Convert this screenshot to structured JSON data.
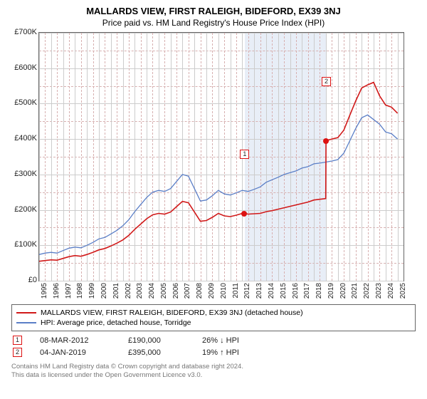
{
  "title": "MALLARDS VIEW, FIRST RALEIGH, BIDEFORD, EX39 3NJ",
  "subtitle": "Price paid vs. HM Land Registry's House Price Index (HPI)",
  "chart": {
    "type": "line",
    "xmin": 1995,
    "xmax": 2025.5,
    "ymin": 0,
    "ymax": 700000,
    "ylabels": [
      "£0",
      "£100K",
      "£200K",
      "£300K",
      "£400K",
      "£500K",
      "£600K",
      "£700K"
    ],
    "xticks": [
      1995,
      1996,
      1997,
      1998,
      1999,
      2000,
      2001,
      2002,
      2003,
      2004,
      2005,
      2006,
      2007,
      2008,
      2009,
      2010,
      2011,
      2012,
      2013,
      2014,
      2015,
      2016,
      2017,
      2018,
      2019,
      2020,
      2021,
      2022,
      2023,
      2024,
      2025
    ],
    "yticks": [
      0,
      100000,
      200000,
      300000,
      400000,
      500000,
      600000,
      700000
    ],
    "grid_color": "#cccccc",
    "dash_color": "#d7b0b0",
    "background_color": "#ffffff",
    "shaded_band": {
      "xstart": 2012.2,
      "xend": 2019.0,
      "color": "#e8eef7"
    },
    "series_hpi": {
      "label": "HPI: Average price, detached house, Torridge",
      "color": "#5b7fc7",
      "width": 1.3,
      "points": [
        [
          1995,
          74000
        ],
        [
          1995.5,
          78000
        ],
        [
          1996,
          80000
        ],
        [
          1996.5,
          78000
        ],
        [
          1997,
          85000
        ],
        [
          1997.5,
          92000
        ],
        [
          1998,
          95000
        ],
        [
          1998.5,
          93000
        ],
        [
          1999,
          100000
        ],
        [
          1999.5,
          108000
        ],
        [
          2000,
          118000
        ],
        [
          2000.5,
          122000
        ],
        [
          2001,
          132000
        ],
        [
          2001.5,
          142000
        ],
        [
          2002,
          155000
        ],
        [
          2002.5,
          172000
        ],
        [
          2003,
          195000
        ],
        [
          2003.5,
          215000
        ],
        [
          2004,
          235000
        ],
        [
          2004.5,
          250000
        ],
        [
          2005,
          255000
        ],
        [
          2005.5,
          252000
        ],
        [
          2006,
          260000
        ],
        [
          2006.5,
          280000
        ],
        [
          2007,
          300000
        ],
        [
          2007.5,
          295000
        ],
        [
          2008,
          260000
        ],
        [
          2008.5,
          225000
        ],
        [
          2009,
          228000
        ],
        [
          2009.5,
          240000
        ],
        [
          2010,
          255000
        ],
        [
          2010.5,
          245000
        ],
        [
          2011,
          242000
        ],
        [
          2011.5,
          248000
        ],
        [
          2012,
          255000
        ],
        [
          2012.5,
          252000
        ],
        [
          2013,
          258000
        ],
        [
          2013.5,
          265000
        ],
        [
          2014,
          278000
        ],
        [
          2014.5,
          285000
        ],
        [
          2015,
          292000
        ],
        [
          2015.5,
          300000
        ],
        [
          2016,
          305000
        ],
        [
          2016.5,
          310000
        ],
        [
          2017,
          318000
        ],
        [
          2017.5,
          322000
        ],
        [
          2018,
          330000
        ],
        [
          2018.5,
          332000
        ],
        [
          2019,
          335000
        ],
        [
          2019.5,
          338000
        ],
        [
          2020,
          342000
        ],
        [
          2020.5,
          360000
        ],
        [
          2021,
          395000
        ],
        [
          2021.5,
          430000
        ],
        [
          2022,
          460000
        ],
        [
          2022.5,
          468000
        ],
        [
          2023,
          455000
        ],
        [
          2023.5,
          442000
        ],
        [
          2024,
          420000
        ],
        [
          2024.5,
          415000
        ],
        [
          2025,
          400000
        ]
      ]
    },
    "series_price": {
      "label": "MALLARDS VIEW, FIRST RALEIGH, BIDEFORD, EX39 3NJ (detached house)",
      "color": "#d11919",
      "width": 1.6,
      "points": [
        [
          1995,
          55000
        ],
        [
          1995.5,
          57000
        ],
        [
          1996,
          59000
        ],
        [
          1996.5,
          58000
        ],
        [
          1997,
          63000
        ],
        [
          1997.5,
          68000
        ],
        [
          1998,
          71000
        ],
        [
          1998.5,
          69000
        ],
        [
          1999,
          74000
        ],
        [
          1999.5,
          80000
        ],
        [
          2000,
          87000
        ],
        [
          2000.5,
          91000
        ],
        [
          2001,
          98000
        ],
        [
          2001.5,
          106000
        ],
        [
          2002,
          115000
        ],
        [
          2002.5,
          128000
        ],
        [
          2003,
          145000
        ],
        [
          2003.5,
          160000
        ],
        [
          2004,
          175000
        ],
        [
          2004.5,
          186000
        ],
        [
          2005,
          190000
        ],
        [
          2005.5,
          188000
        ],
        [
          2006,
          194000
        ],
        [
          2006.5,
          209000
        ],
        [
          2007,
          224000
        ],
        [
          2007.5,
          220000
        ],
        [
          2008,
          194000
        ],
        [
          2008.5,
          168000
        ],
        [
          2009,
          170000
        ],
        [
          2009.5,
          179000
        ],
        [
          2010,
          190000
        ],
        [
          2010.5,
          183000
        ],
        [
          2011,
          181000
        ],
        [
          2011.5,
          185000
        ],
        [
          2012,
          190000
        ],
        [
          2012.18,
          190000
        ],
        [
          2012.5,
          188000
        ],
        [
          2013,
          189000
        ],
        [
          2013.5,
          190000
        ],
        [
          2014,
          195000
        ],
        [
          2014.5,
          198000
        ],
        [
          2015,
          202000
        ],
        [
          2015.5,
          206000
        ],
        [
          2016,
          210000
        ],
        [
          2016.5,
          214000
        ],
        [
          2017,
          218000
        ],
        [
          2017.5,
          222000
        ],
        [
          2018,
          228000
        ],
        [
          2018.5,
          230000
        ],
        [
          2018.99,
          232000
        ],
        [
          2019.01,
          395000
        ],
        [
          2019.5,
          400000
        ],
        [
          2020,
          404000
        ],
        [
          2020.5,
          425000
        ],
        [
          2021,
          467000
        ],
        [
          2021.5,
          508000
        ],
        [
          2022,
          544000
        ],
        [
          2022.5,
          553000
        ],
        [
          2023,
          560000
        ],
        [
          2023.5,
          522000
        ],
        [
          2024,
          496000
        ],
        [
          2024.5,
          490000
        ],
        [
          2025,
          473000
        ]
      ]
    },
    "sale_markers": [
      {
        "n": "1",
        "x": 2012.18,
        "y": 190000
      },
      {
        "n": "2",
        "x": 2019.01,
        "y": 395000
      }
    ]
  },
  "legend": {
    "rows": [
      {
        "color": "#d11919",
        "label": "MALLARDS VIEW, FIRST RALEIGH, BIDEFORD, EX39 3NJ (detached house)"
      },
      {
        "color": "#5b7fc7",
        "label": "HPI: Average price, detached house, Torridge"
      }
    ]
  },
  "sales": [
    {
      "n": "1",
      "date": "08-MAR-2012",
      "price": "£190,000",
      "diff": "26% ↓ HPI"
    },
    {
      "n": "2",
      "date": "04-JAN-2019",
      "price": "£395,000",
      "diff": "19% ↑ HPI"
    }
  ],
  "footnote1": "Contains HM Land Registry data © Crown copyright and database right 2024.",
  "footnote2": "This data is licensed under the Open Government Licence v3.0."
}
